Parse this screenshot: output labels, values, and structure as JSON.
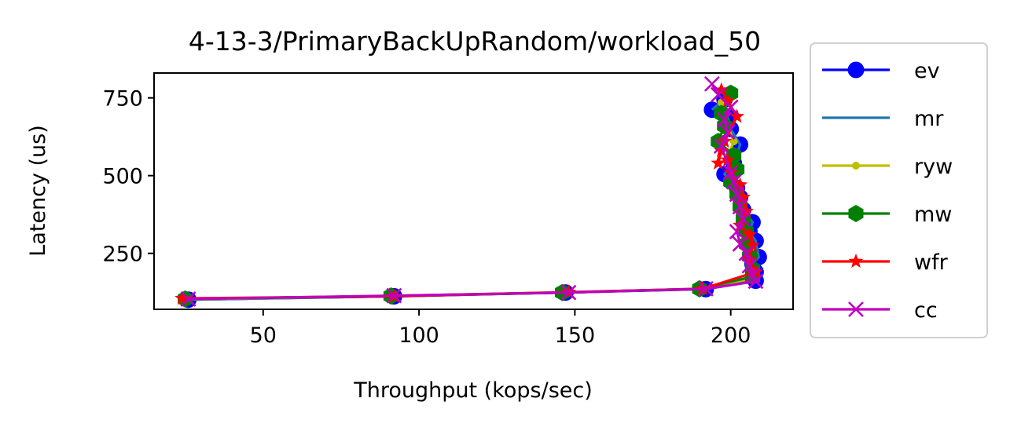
{
  "chart_data": {
    "type": "line",
    "title": "4-13-3/PrimaryBackUpRandom/workload_50",
    "xlabel": "Throughput (kops/sec)",
    "ylabel": "Latency (us)",
    "xlim": [
      15,
      220
    ],
    "ylim": [
      70,
      830
    ],
    "xticks": [
      50,
      100,
      150,
      200
    ],
    "yticks": [
      250,
      500,
      750
    ],
    "grid": false,
    "legend_position": "outside-right",
    "series": [
      {
        "name": "ev",
        "color": "#0000ff",
        "marker": "circle-large",
        "points": [
          [
            26,
            101
          ],
          [
            92,
            112
          ],
          [
            147,
            124
          ],
          [
            192,
            135
          ],
          [
            208,
            162
          ],
          [
            208,
            190
          ],
          [
            207,
            215
          ],
          [
            209,
            238
          ],
          [
            208,
            290
          ],
          [
            206,
            320
          ],
          [
            207,
            350
          ],
          [
            204,
            390
          ],
          [
            203,
            430
          ],
          [
            202,
            460
          ],
          [
            198,
            505
          ],
          [
            201,
            540
          ],
          [
            203,
            600
          ],
          [
            200,
            650
          ],
          [
            199,
            690
          ],
          [
            198,
            745
          ],
          [
            194,
            712
          ]
        ]
      },
      {
        "name": "mr",
        "color": "#1f77b4",
        "marker": "none",
        "points": [
          [
            26,
            101
          ],
          [
            92,
            112
          ],
          [
            147,
            124
          ],
          [
            192,
            135
          ],
          [
            208,
            162
          ],
          [
            208,
            190
          ],
          [
            207,
            215
          ],
          [
            209,
            238
          ],
          [
            208,
            290
          ],
          [
            206,
            320
          ],
          [
            207,
            350
          ],
          [
            204,
            390
          ],
          [
            203,
            430
          ],
          [
            202,
            460
          ],
          [
            198,
            505
          ],
          [
            201,
            540
          ],
          [
            203,
            600
          ],
          [
            200,
            650
          ],
          [
            199,
            690
          ],
          [
            198,
            745
          ],
          [
            194,
            712
          ]
        ]
      },
      {
        "name": "ryw",
        "color": "#bfbf00",
        "marker": "dot",
        "points": [
          [
            25,
            102
          ],
          [
            91,
            113
          ],
          [
            146,
            125
          ],
          [
            191,
            136
          ],
          [
            207,
            170
          ],
          [
            206,
            205
          ],
          [
            205,
            250
          ],
          [
            206,
            285
          ],
          [
            205,
            330
          ],
          [
            204,
            370
          ],
          [
            203,
            410
          ],
          [
            202,
            445
          ],
          [
            201,
            480
          ],
          [
            200,
            520
          ],
          [
            199,
            560
          ],
          [
            201,
            610
          ],
          [
            199,
            660
          ],
          [
            198,
            700
          ],
          [
            197,
            735
          ]
        ]
      },
      {
        "name": "mw",
        "color": "#008000",
        "marker": "hexagon",
        "points": [
          [
            25,
            103
          ],
          [
            91,
            113
          ],
          [
            146,
            124
          ],
          [
            190,
            136
          ],
          [
            207,
            175
          ],
          [
            207,
            200
          ],
          [
            206,
            240
          ],
          [
            205,
            280
          ],
          [
            205,
            320
          ],
          [
            204,
            360
          ],
          [
            203,
            400
          ],
          [
            202,
            440
          ],
          [
            200,
            480
          ],
          [
            202,
            520
          ],
          [
            201,
            565
          ],
          [
            196,
            610
          ],
          [
            198,
            660
          ],
          [
            197,
            700
          ],
          [
            200,
            765
          ]
        ]
      },
      {
        "name": "wfr",
        "color": "#ff0000",
        "marker": "star",
        "points": [
          [
            24,
            105
          ],
          [
            92,
            112
          ],
          [
            148,
            125
          ],
          [
            191,
            136
          ],
          [
            208,
            190
          ],
          [
            206,
            230
          ],
          [
            207,
            275
          ],
          [
            206,
            310
          ],
          [
            203,
            340
          ],
          [
            205,
            385
          ],
          [
            204,
            430
          ],
          [
            203,
            470
          ],
          [
            200,
            510
          ],
          [
            199,
            550
          ],
          [
            196,
            540
          ],
          [
            197,
            580
          ],
          [
            198,
            610
          ],
          [
            202,
            690
          ],
          [
            199,
            740
          ],
          [
            197,
            775
          ]
        ]
      },
      {
        "name": "cc",
        "color": "#bf00bf",
        "marker": "x",
        "points": [
          [
            26,
            103
          ],
          [
            92,
            114
          ],
          [
            148,
            124
          ],
          [
            192,
            136
          ],
          [
            208,
            160
          ],
          [
            207,
            180
          ],
          [
            206,
            210
          ],
          [
            205,
            250
          ],
          [
            203,
            280
          ],
          [
            202,
            320
          ],
          [
            204,
            360
          ],
          [
            203,
            400
          ],
          [
            202,
            440
          ],
          [
            201,
            480
          ],
          [
            200,
            510
          ],
          [
            197,
            595
          ],
          [
            199,
            640
          ],
          [
            198,
            680
          ],
          [
            200,
            720
          ],
          [
            196,
            760
          ],
          [
            194,
            795
          ]
        ]
      }
    ]
  }
}
